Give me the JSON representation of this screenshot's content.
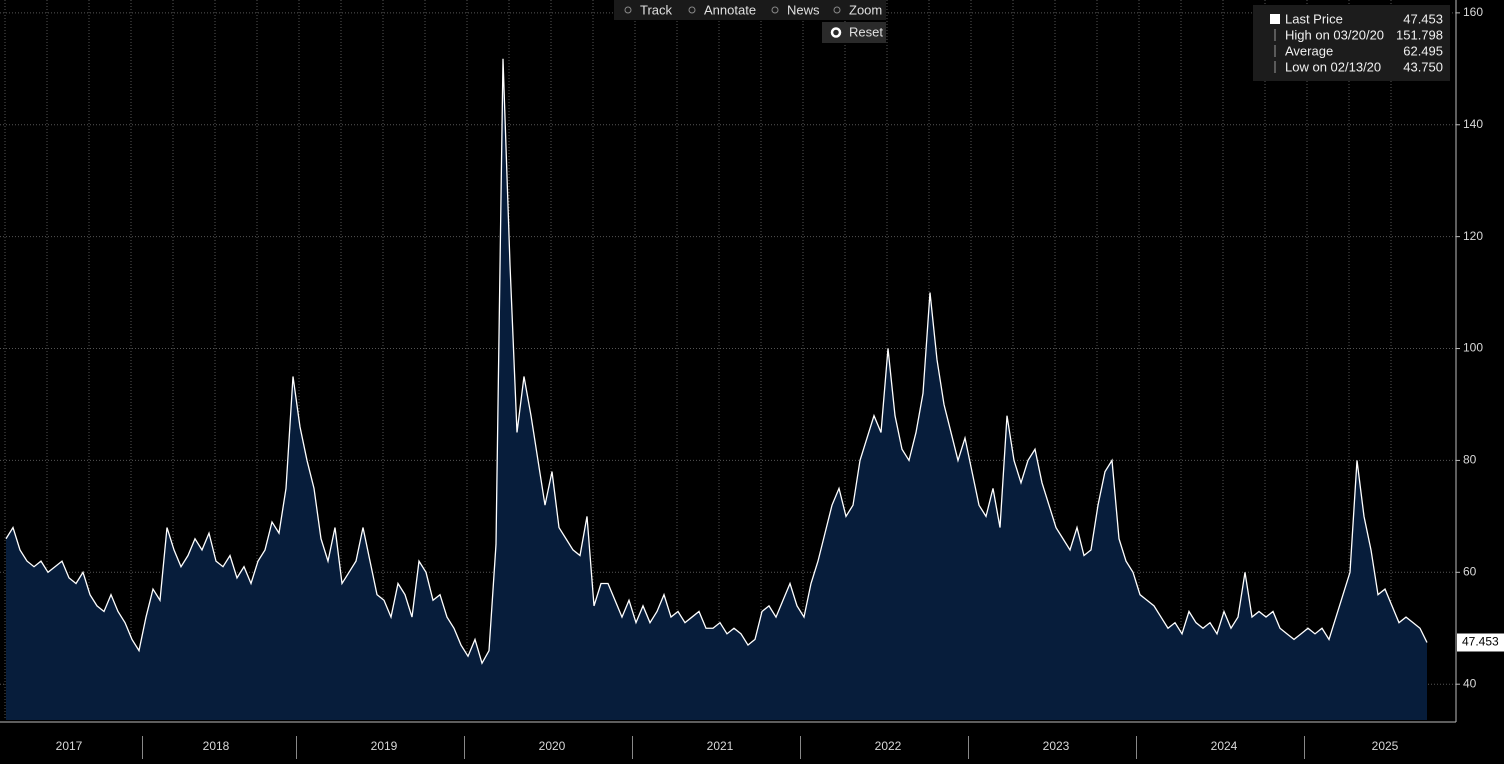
{
  "toolbar": [
    "Track",
    "Annotate",
    "News",
    "Zoom"
  ],
  "reset": "Reset",
  "chart_data": {
    "type": "area",
    "categories": [
      null,
      null,
      null,
      null,
      null,
      null,
      null,
      null,
      null,
      "2017",
      null,
      null,
      null,
      null,
      null,
      null,
      null,
      null,
      null,
      null,
      null,
      null,
      null,
      null,
      null,
      null,
      null,
      null,
      null,
      null,
      "2018",
      null,
      null,
      null,
      null,
      null,
      null,
      null,
      null,
      null,
      null,
      null,
      null,
      null,
      null,
      null,
      null,
      null,
      null,
      null,
      null,
      null,
      null,
      null,
      "2019",
      null,
      null,
      null,
      null,
      null,
      null,
      null,
      null,
      null,
      null,
      null,
      null,
      null,
      null,
      null,
      null,
      null,
      null,
      null,
      null,
      null,
      null,
      null,
      "2020",
      null,
      null,
      null,
      null,
      null,
      null,
      null,
      null,
      null,
      null,
      null,
      null,
      null,
      null,
      null,
      null,
      null,
      null,
      null,
      null,
      null,
      null,
      null,
      "2021",
      null,
      null,
      null,
      null,
      null,
      null,
      null,
      null,
      null,
      null,
      null,
      null,
      null,
      null,
      null,
      null,
      null,
      null,
      null,
      null,
      null,
      null,
      null,
      "2022",
      null,
      null,
      null,
      null,
      null,
      null,
      null,
      null,
      null,
      null,
      null,
      null,
      null,
      null,
      null,
      null,
      null,
      null,
      null,
      null,
      null,
      null,
      null,
      "2023",
      null,
      null,
      null,
      null,
      null,
      null,
      null,
      null,
      null,
      null,
      null,
      null,
      null,
      null,
      null,
      null,
      null,
      null,
      null,
      null,
      null,
      null,
      null,
      "2024",
      null,
      null,
      null,
      null,
      null,
      null,
      null,
      null,
      null,
      null,
      null,
      null,
      null,
      null,
      null,
      null,
      null,
      null,
      null,
      null,
      null,
      null,
      "2025",
      null,
      null,
      null,
      null,
      null,
      null
    ],
    "values": [
      66,
      68,
      64,
      62,
      61,
      62,
      60,
      61,
      62,
      59,
      58,
      60,
      56,
      54,
      53,
      56,
      53,
      51,
      48,
      46,
      52,
      57,
      55,
      68,
      64,
      61,
      63,
      66,
      64,
      67,
      62,
      61,
      63,
      59,
      61,
      58,
      62,
      64,
      69,
      67,
      75,
      95,
      86,
      80,
      75,
      66,
      62,
      68,
      58,
      60,
      62,
      68,
      62,
      56,
      55,
      52,
      58,
      56,
      52,
      62,
      60,
      55,
      56,
      52,
      50,
      47,
      45,
      48,
      43.75,
      46,
      65,
      151.798,
      115,
      85,
      95,
      88,
      80,
      72,
      78,
      68,
      66,
      64,
      63,
      70,
      54,
      58,
      58,
      55,
      52,
      55,
      51,
      54,
      51,
      53,
      56,
      52,
      53,
      51,
      52,
      53,
      50,
      50,
      51,
      49,
      50,
      49,
      47,
      48,
      53,
      54,
      52,
      55,
      58,
      54,
      52,
      58,
      62,
      67,
      72,
      75,
      70,
      72,
      80,
      84,
      88,
      85,
      100,
      88,
      82,
      80,
      85,
      92,
      110,
      98,
      90,
      85,
      80,
      84,
      78,
      72,
      70,
      75,
      68,
      88,
      80,
      76,
      80,
      82,
      76,
      72,
      68,
      66,
      64,
      68,
      63,
      64,
      72,
      78,
      80,
      66,
      62,
      60,
      56,
      55,
      54,
      52,
      50,
      51,
      49,
      53,
      51,
      50,
      51,
      49,
      53,
      50,
      52,
      60,
      52,
      53,
      52,
      53,
      50,
      49,
      48,
      49,
      50,
      49,
      50,
      48,
      52,
      56,
      60,
      80,
      70,
      64,
      56,
      57,
      54,
      51,
      52,
      51,
      50,
      47.453
    ],
    "color": "#ffffff",
    "fill": "#071d3b",
    "ylim": [
      33.6,
      162.3
    ],
    "yticks": [
      40,
      60,
      80,
      100,
      120,
      140,
      160
    ],
    "grid": true,
    "legend": [
      {
        "label": "Last Price",
        "value": "47.453"
      },
      {
        "label": "High on 03/20/20",
        "value": "151.798"
      },
      {
        "label": "Average",
        "value": "62.495"
      },
      {
        "label": "Low on 02/13/20",
        "value": "43.750"
      }
    ]
  }
}
